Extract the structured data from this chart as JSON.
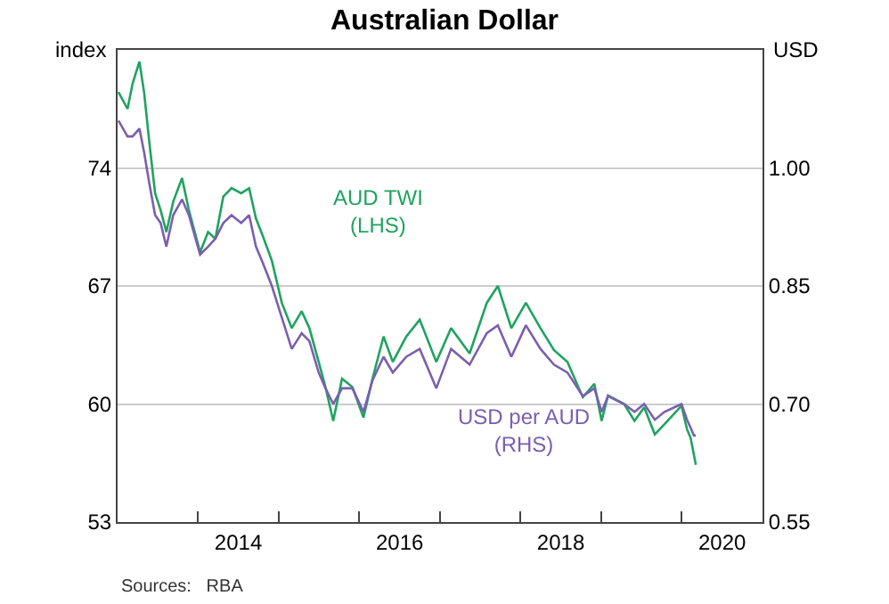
{
  "chart_data": {
    "type": "line",
    "title": "Australian Dollar",
    "ylabel": "index",
    "y2label": "USD",
    "x": [
      "2013-01-05",
      "2013-02-15",
      "2013-03-10",
      "2013-04-10",
      "2013-05-01",
      "2013-05-25",
      "2013-06-20",
      "2013-07-15",
      "2013-08-10",
      "2013-09-10",
      "2013-10-20",
      "2013-11-20",
      "2014-01-10",
      "2014-02-15",
      "2014-03-20",
      "2014-04-25",
      "2014-06-01",
      "2014-07-15",
      "2014-08-20",
      "2014-09-20",
      "2014-10-20",
      "2014-12-01",
      "2015-01-15",
      "2015-03-01",
      "2015-04-15",
      "2015-05-20",
      "2015-07-01",
      "2015-08-01",
      "2015-09-05",
      "2015-10-15",
      "2015-12-01",
      "2016-01-20",
      "2016-03-01",
      "2016-04-20",
      "2016-06-01",
      "2016-08-01",
      "2016-10-01",
      "2016-12-15",
      "2017-02-20",
      "2017-05-15",
      "2017-08-01",
      "2017-09-20",
      "2017-11-20",
      "2018-01-25",
      "2018-04-01",
      "2018-06-01",
      "2018-08-01",
      "2018-10-10",
      "2018-12-01",
      "2019-01-03",
      "2019-02-01",
      "2019-04-15",
      "2019-06-01",
      "2019-07-15",
      "2019-09-01",
      "2019-10-15",
      "2019-12-31",
      "2020-01-25",
      "2020-02-10",
      "2020-02-25",
      "2020-03-05"
    ],
    "series": [
      {
        "name": "USD per AUD\n(RHS)",
        "color": "#7b5fb0",
        "axis": "y2",
        "values": [
          1.06,
          1.04,
          1.04,
          1.05,
          1.02,
          0.98,
          0.94,
          0.93,
          0.9,
          0.94,
          0.96,
          0.94,
          0.89,
          0.9,
          0.91,
          0.93,
          0.94,
          0.93,
          0.94,
          0.9,
          0.88,
          0.85,
          0.81,
          0.77,
          0.79,
          0.78,
          0.74,
          0.72,
          0.7,
          0.72,
          0.72,
          0.69,
          0.73,
          0.76,
          0.74,
          0.76,
          0.77,
          0.72,
          0.77,
          0.75,
          0.79,
          0.8,
          0.76,
          0.8,
          0.77,
          0.75,
          0.74,
          0.71,
          0.72,
          0.69,
          0.71,
          0.7,
          0.69,
          0.7,
          0.68,
          0.69,
          0.7,
          0.68,
          0.67,
          0.66,
          0.66
        ]
      },
      {
        "name": "AUD TWI\n(LHS)",
        "color": "#1fa35f",
        "values": [
          78.5,
          77.5,
          79.0,
          80.3,
          78.5,
          75.5,
          72.5,
          71.5,
          70.2,
          72.0,
          73.4,
          71.5,
          69.0,
          70.2,
          69.8,
          72.3,
          72.8,
          72.5,
          72.8,
          71.0,
          70.0,
          68.5,
          66.0,
          64.5,
          65.5,
          64.5,
          62.5,
          61.0,
          59.0,
          61.5,
          61.0,
          59.2,
          61.5,
          64.0,
          62.5,
          64.0,
          65.0,
          62.5,
          64.5,
          63.0,
          66.0,
          67.0,
          64.5,
          66.0,
          64.5,
          63.2,
          62.5,
          60.4,
          61.2,
          59.0,
          60.5,
          60.0,
          59.0,
          59.8,
          58.2,
          58.8,
          59.9,
          58.5,
          58.0,
          57.0,
          56.4
        ]
      }
    ],
    "xlim": [
      "2013-01-01",
      "2021-01-01"
    ],
    "xticks": [
      {
        "value": "2014-01-01",
        "label": null
      },
      {
        "value": "2015-01-01",
        "label": null
      },
      {
        "value": "2016-01-01",
        "label": null
      },
      {
        "value": "2017-01-01",
        "label": null
      },
      {
        "value": "2018-01-01",
        "label": null
      },
      {
        "value": "2019-01-01",
        "label": null
      },
      {
        "value": "2020-01-01",
        "label": null
      },
      {
        "value": "2014-07-02",
        "label": "2014"
      },
      {
        "value": "2016-07-02",
        "label": "2016"
      },
      {
        "value": "2018-07-02",
        "label": "2018"
      },
      {
        "value": "2020-07-02",
        "label": "2020"
      }
    ],
    "ylim": [
      53,
      81
    ],
    "yticks": [
      53,
      60,
      67,
      74
    ],
    "y2lim": [
      0.55,
      1.15
    ],
    "y2ticks": [
      {
        "value": 0.55,
        "label": "0.55"
      },
      {
        "value": 0.7,
        "label": "0.70"
      },
      {
        "value": 0.85,
        "label": "0.85"
      },
      {
        "value": 1.0,
        "label": "1.00"
      }
    ],
    "grid": "y",
    "marker": "none",
    "line_style": "solid",
    "annotations": [
      "Sources:   RBA"
    ]
  }
}
